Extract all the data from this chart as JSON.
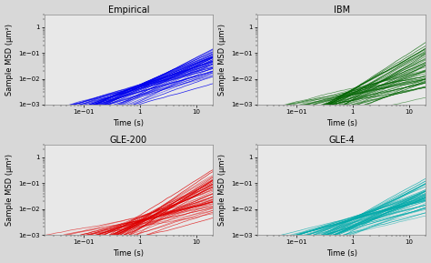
{
  "titles": [
    "Empirical",
    "IBM",
    "GLE-200",
    "GLE-4"
  ],
  "colors": [
    "#0000EE",
    "#006400",
    "#DD0000",
    "#00AAAA"
  ],
  "n_lines": 50,
  "t_start": 0.02,
  "t_end": 20.0,
  "n_points": 300,
  "ylim": [
    0.001,
    3.0
  ],
  "xlim": [
    0.02,
    20.0
  ],
  "ylabel": "Sample MSD (μm²)",
  "xlabel": "Time (s)",
  "linewidth": 0.5,
  "background_color": "#e8e8e8",
  "fig_background": "#d8d8d8"
}
